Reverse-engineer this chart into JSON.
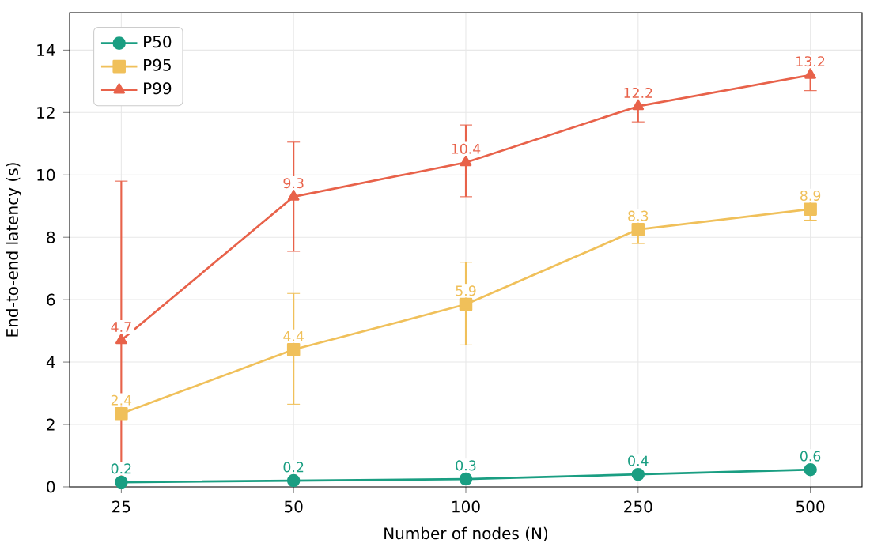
{
  "chart_data": {
    "type": "line",
    "xlabel": "Number of nodes (N)",
    "ylabel": "End-to-end latency (s)",
    "categories": [
      "25",
      "50",
      "100",
      "250",
      "500"
    ],
    "series": [
      {
        "name": "P50",
        "color": "#1a9e82",
        "marker": "circle",
        "values": [
          0.15,
          0.2,
          0.25,
          0.4,
          0.55
        ],
        "value_labels": [
          "0.2",
          "0.2",
          "0.3",
          "0.4",
          "0.6"
        ]
      },
      {
        "name": "P95",
        "color": "#f0c05a",
        "marker": "square",
        "values": [
          2.35,
          4.4,
          5.85,
          8.25,
          8.9
        ],
        "value_labels": [
          "2.4",
          "4.4",
          "5.9",
          "8.3",
          "8.9"
        ],
        "errors": [
          null,
          [
            2.65,
            6.2
          ],
          [
            4.55,
            7.2
          ],
          [
            7.8,
            8.6
          ],
          [
            8.55,
            9.2
          ]
        ]
      },
      {
        "name": "P99",
        "color": "#e8624a",
        "marker": "triangle",
        "values": [
          4.7,
          9.3,
          10.4,
          12.2,
          13.2
        ],
        "value_labels": [
          "4.7",
          "9.3",
          "10.4",
          "12.2",
          "13.2"
        ],
        "errors": [
          [
            0,
            9.8
          ],
          [
            7.55,
            11.05
          ],
          [
            9.3,
            11.6
          ],
          [
            11.7,
            12.8
          ],
          [
            12.7,
            13.7
          ]
        ]
      }
    ],
    "ylim": [
      0,
      15.2
    ],
    "yticks": [
      0,
      2,
      4,
      6,
      8,
      10,
      12,
      14
    ],
    "grid": true,
    "legend": "top left"
  }
}
